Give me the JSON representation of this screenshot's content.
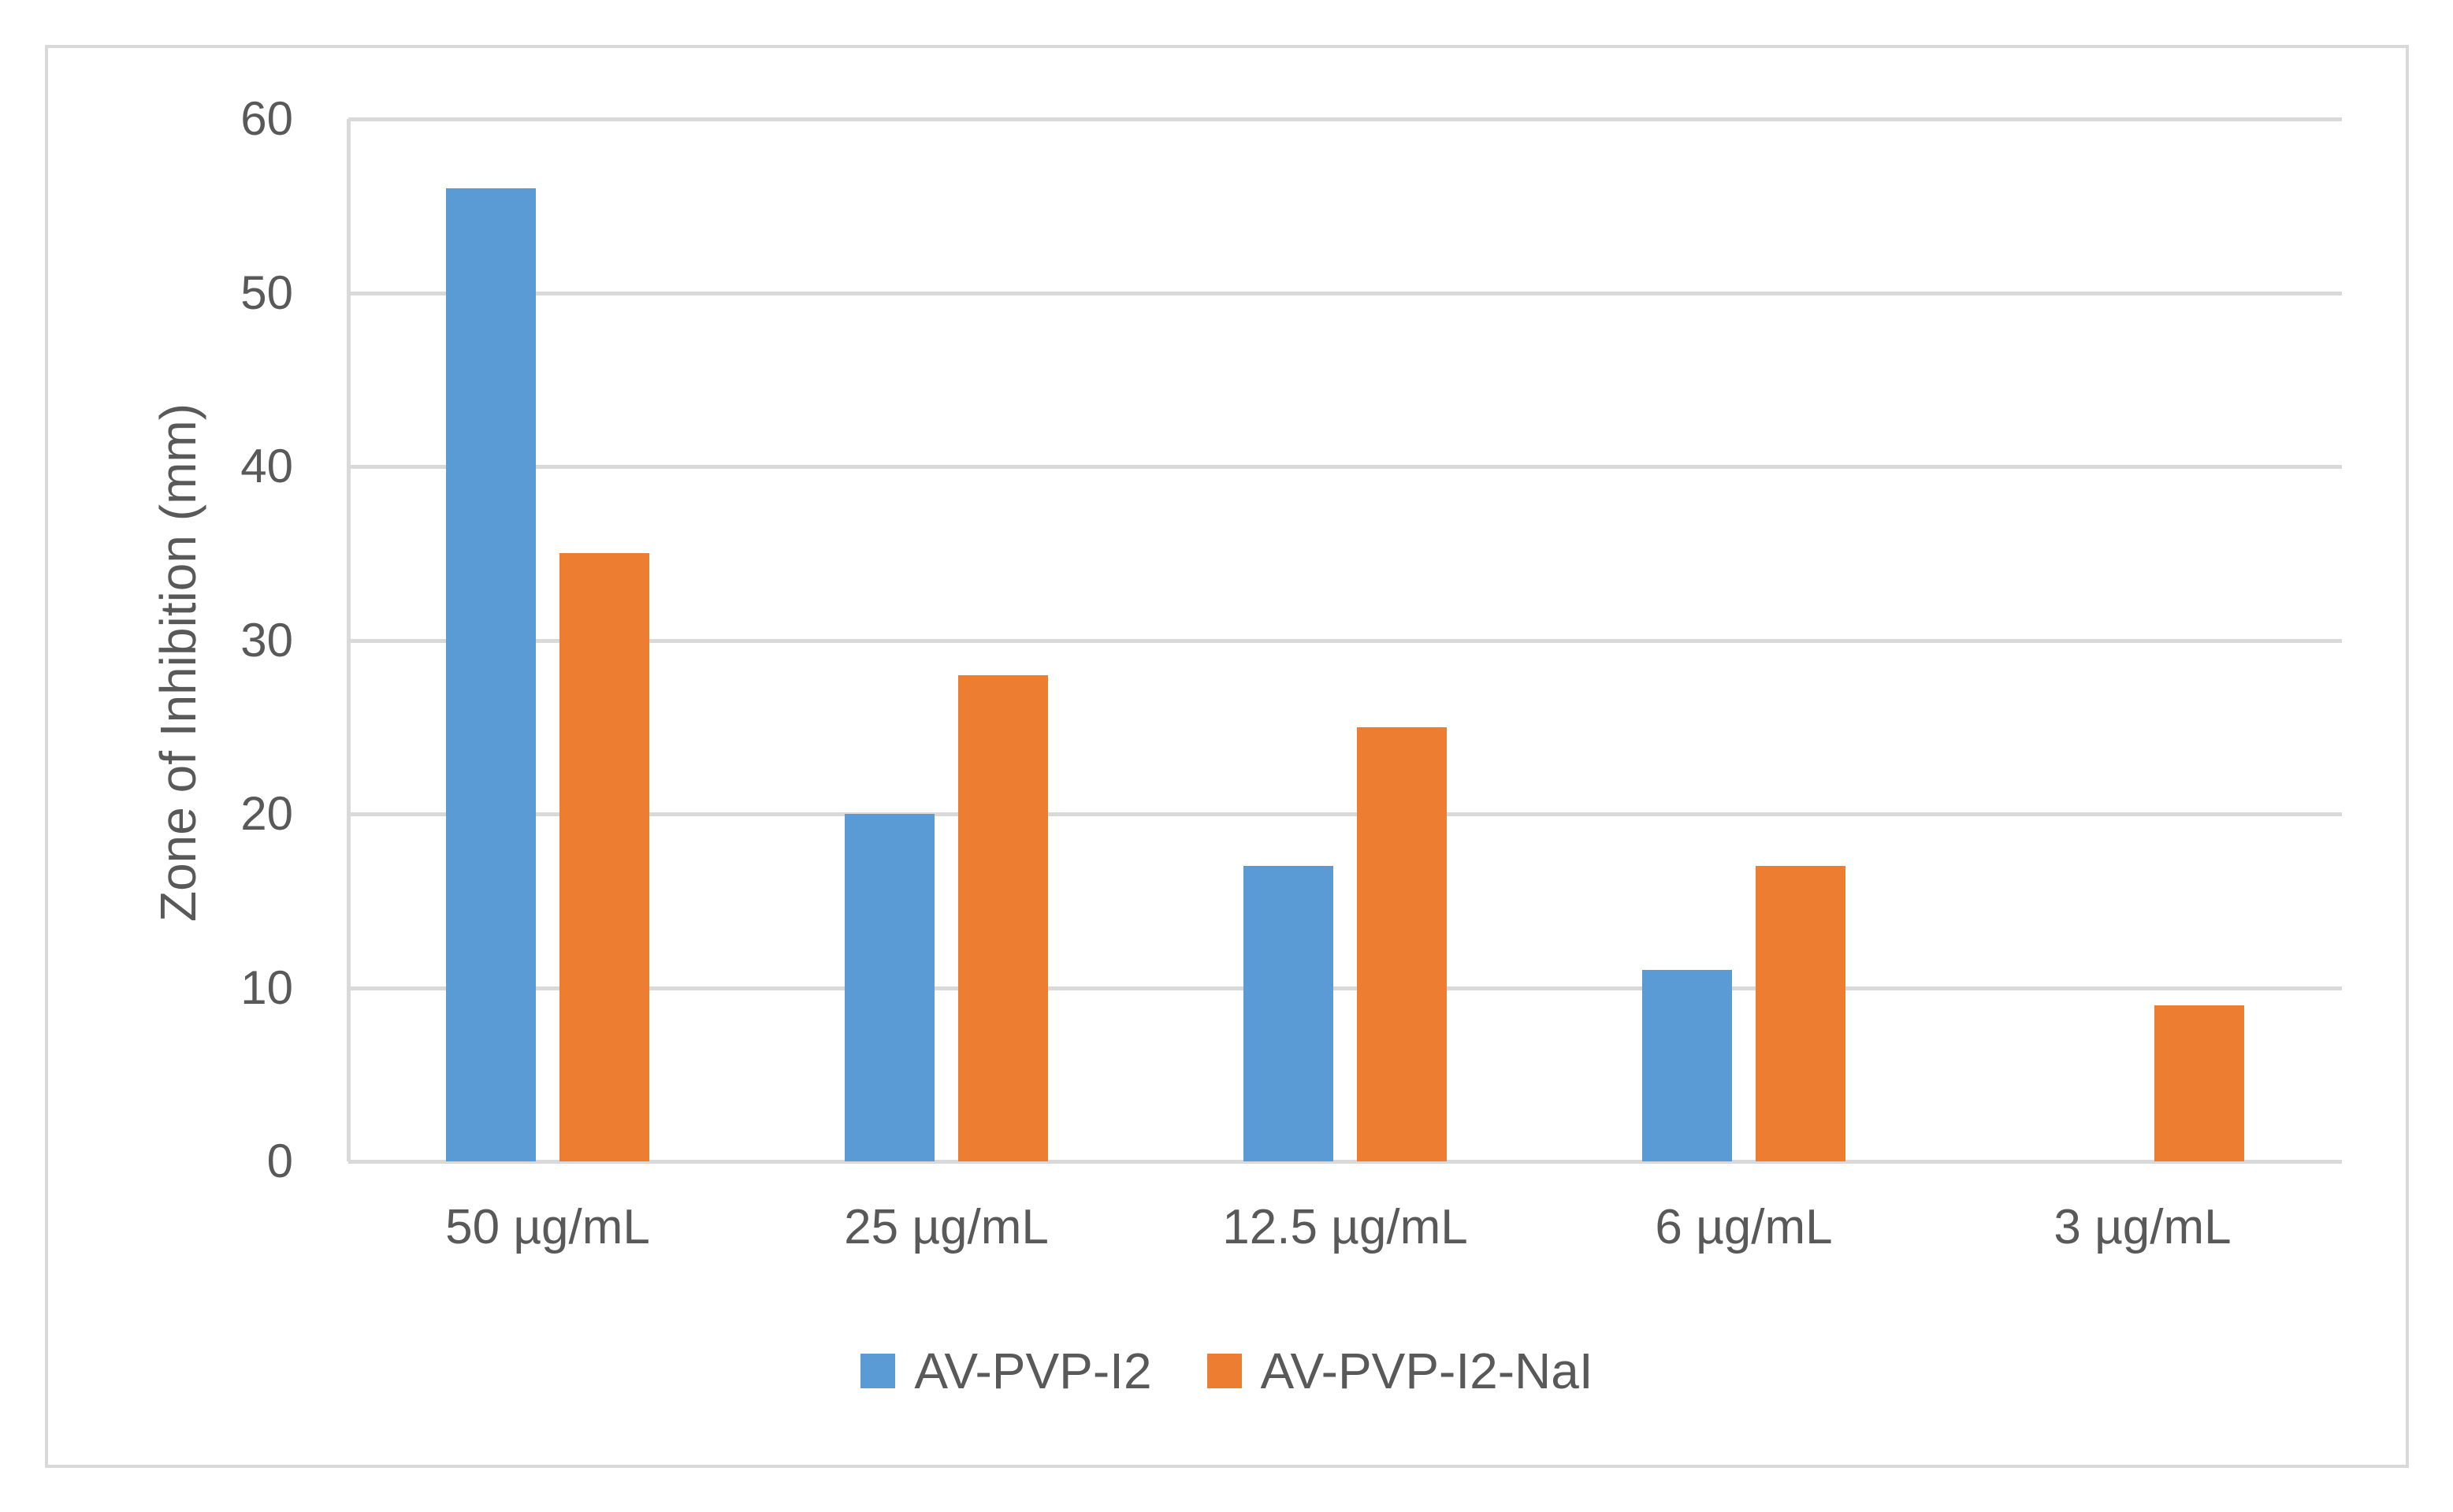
{
  "figure": {
    "background": "#FFFFFF",
    "border_color": "#D9D9D9",
    "text_color": "#595959",
    "gridline_color": "#D9D9D9"
  },
  "chart_data": {
    "type": "bar",
    "title": "",
    "xlabel": "",
    "ylabel": "Zone of Inhibition (mm)",
    "ylim": [
      0,
      60
    ],
    "yticks": [
      0,
      10,
      20,
      30,
      40,
      50,
      60
    ],
    "grid": true,
    "legend_position": "bottom",
    "categories": [
      "50 µg/mL",
      "25 µg/mL",
      "12.5 µg/mL",
      "6 µg/mL",
      "3 µg/mL"
    ],
    "series": [
      {
        "name": "AV-PVP-I2",
        "color": "#5B9BD5",
        "values": [
          56,
          20,
          17,
          11,
          0
        ]
      },
      {
        "name": "AV-PVP-I2-NaI",
        "color": "#ED7D31",
        "values": [
          35,
          28,
          25,
          17,
          9
        ]
      }
    ]
  }
}
